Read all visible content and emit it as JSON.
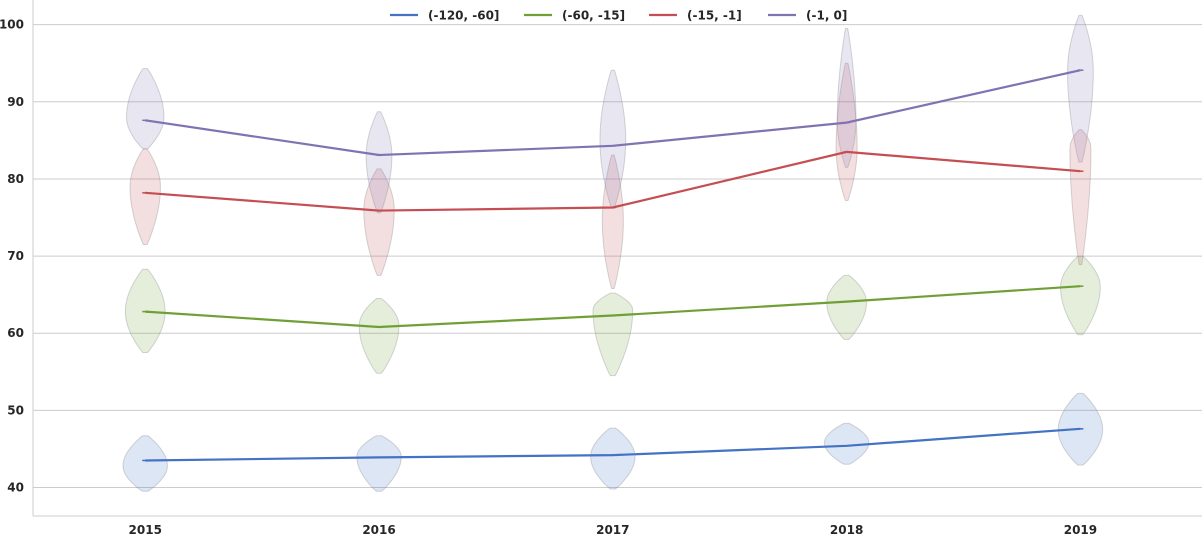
{
  "chart_data": {
    "type": "line",
    "subtype": "line with violin distributions",
    "title": "",
    "xlabel": "",
    "ylabel": "",
    "categories": [
      "2015",
      "2016",
      "2017",
      "2018",
      "2019"
    ],
    "ylim": [
      36.3,
      103.2
    ],
    "xlim": [
      2014.52,
      2019.52
    ],
    "yticks": [
      40,
      50,
      60,
      70,
      80,
      90,
      100
    ],
    "grid": {
      "y": true,
      "x": false
    },
    "legend": {
      "position": "top-center",
      "columns": 4
    },
    "series": [
      {
        "name": "(-120, -60]",
        "color": "#4472c4",
        "values": [
          43.5,
          43.9,
          44.2,
          45.4,
          47.6
        ],
        "violins": [
          {
            "min": 39.5,
            "max": 46.7,
            "peak": 42.8,
            "halfwidth": 0.095
          },
          {
            "min": 39.5,
            "max": 46.7,
            "peak": 44.0,
            "halfwidth": 0.095
          },
          {
            "min": 39.8,
            "max": 47.7,
            "peak": 44.0,
            "halfwidth": 0.095
          },
          {
            "min": 43.0,
            "max": 48.3,
            "peak": 45.8,
            "halfwidth": 0.095
          },
          {
            "min": 42.9,
            "max": 52.2,
            "peak": 47.5,
            "halfwidth": 0.095
          }
        ]
      },
      {
        "name": "(-60, -15]",
        "color": "#70a035",
        "values": [
          62.8,
          60.8,
          62.3,
          64.1,
          66.1
        ],
        "violins": [
          {
            "min": 57.5,
            "max": 68.3,
            "peak": 62.8,
            "halfwidth": 0.085
          },
          {
            "min": 54.8,
            "max": 64.5,
            "peak": 61.0,
            "halfwidth": 0.085
          },
          {
            "min": 54.5,
            "max": 65.2,
            "peak": 63.0,
            "halfwidth": 0.085
          },
          {
            "min": 59.2,
            "max": 67.5,
            "peak": 64.0,
            "halfwidth": 0.085
          },
          {
            "min": 59.8,
            "max": 70.0,
            "peak": 66.0,
            "halfwidth": 0.085
          }
        ]
      },
      {
        "name": "(-15, -1]",
        "color": "#c44e52",
        "values": [
          78.2,
          75.9,
          76.3,
          83.5,
          81.0
        ],
        "violins": [
          {
            "min": 71.5,
            "max": 83.9,
            "peak": 79.0,
            "halfwidth": 0.065
          },
          {
            "min": 67.5,
            "max": 81.3,
            "peak": 76.0,
            "halfwidth": 0.065
          },
          {
            "min": 65.8,
            "max": 83.1,
            "peak": 74.5,
            "halfwidth": 0.045
          },
          {
            "min": 77.2,
            "max": 95.0,
            "peak": 84.0,
            "halfwidth": 0.045
          },
          {
            "min": 68.9,
            "max": 86.4,
            "peak": 84.0,
            "halfwidth": 0.045
          }
        ]
      },
      {
        "name": "(-1, 0]",
        "color": "#8172b2",
        "values": [
          87.6,
          83.1,
          84.3,
          87.3,
          94.1
        ],
        "violins": [
          {
            "min": 83.9,
            "max": 94.3,
            "peak": 88.0,
            "halfwidth": 0.08
          },
          {
            "min": 75.6,
            "max": 88.7,
            "peak": 83.0,
            "halfwidth": 0.055
          },
          {
            "min": 76.3,
            "max": 94.1,
            "peak": 85.0,
            "halfwidth": 0.055
          },
          {
            "min": 81.5,
            "max": 99.5,
            "peak": 87.5,
            "halfwidth": 0.04
          },
          {
            "min": 82.2,
            "max": 101.2,
            "peak": 94.0,
            "halfwidth": 0.055
          }
        ]
      }
    ]
  }
}
